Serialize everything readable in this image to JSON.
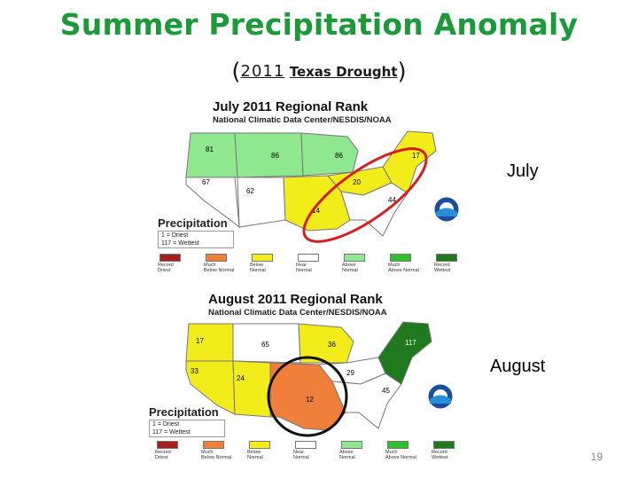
{
  "slide": {
    "title": "Summer Precipitation Anomaly",
    "subtitle_open": "(",
    "subtitle_year": "2011",
    "subtitle_rest": "Texas Drought",
    "subtitle_close": ")",
    "page_number": "19"
  },
  "july_panel": {
    "title": "July 2011 Regional Rank",
    "source": "National Climatic Data Center/NESDIS/NOAA",
    "month_label": "July",
    "region_ranks": [
      "81",
      "86",
      "86",
      "17",
      "67",
      "62",
      "20",
      "14",
      "44"
    ],
    "highlight": {
      "color": "#d42020"
    }
  },
  "august_panel": {
    "title": "August 2011 Regional Rank",
    "source": "National Climatic Data Center/NESDIS/NOAA",
    "month_label": "August",
    "region_ranks": [
      "17",
      "65",
      "36",
      "117",
      "33",
      "24",
      "29",
      "45",
      "12"
    ],
    "highlight": {
      "color": "#111111"
    }
  },
  "legend": {
    "title": "Precipitation",
    "key_line1": "1 = Driest",
    "key_line2": "117 = Wettest",
    "categories": [
      {
        "label1": "Record",
        "label2": "Driest",
        "color": "#a81d1d"
      },
      {
        "label1": "Much",
        "label2": "Below Normal",
        "color": "#ef7f3a"
      },
      {
        "label1": "Below",
        "label2": "Normal",
        "color": "#f3ec1b"
      },
      {
        "label1": "Near",
        "label2": "Normal",
        "color": "#ffffff"
      },
      {
        "label1": "Above",
        "label2": "Normal",
        "color": "#8fe88f"
      },
      {
        "label1": "Much",
        "label2": "Above Normal",
        "color": "#2fbf2f"
      },
      {
        "label1": "Record",
        "label2": "Wettest",
        "color": "#1f7a1f"
      }
    ]
  },
  "colors": {
    "title": "#1c9a3a",
    "yellow": "#f3ec1b",
    "orange": "#ef7f3a",
    "light_green": "#8fe88f",
    "dark_green": "#1f7a1f"
  }
}
